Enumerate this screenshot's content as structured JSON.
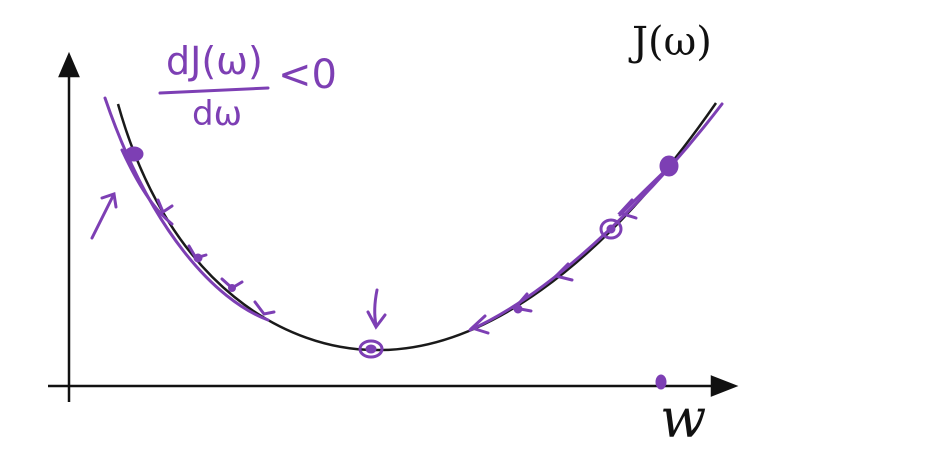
{
  "diagram": {
    "curve_label": "J(ω)",
    "axis_x_label": "w",
    "derivative": {
      "numerator": "dJ(ω)",
      "denominator": "dω",
      "inequality": "<0"
    },
    "colors": {
      "curve": "#1a1a1a",
      "annotation": "#7d3fb4",
      "axes": "#111111"
    }
  }
}
